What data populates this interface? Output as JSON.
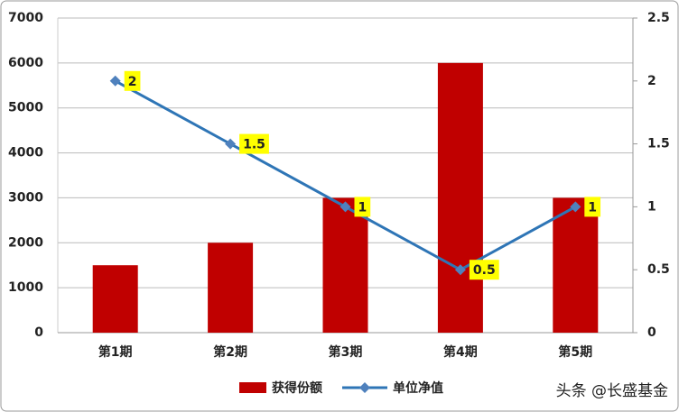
{
  "chart_data": {
    "type": "combo",
    "categories": [
      "第1期",
      "第2期",
      "第3期",
      "第4期",
      "第5期"
    ],
    "series": [
      {
        "name": "获得份额",
        "type": "bar",
        "color": "#c00000",
        "values": [
          1500,
          2000,
          3000,
          6000,
          3000
        ]
      },
      {
        "name": "单位净值",
        "type": "line",
        "axis": "y2",
        "color": "#2e75b6",
        "marker_color": "#4f81bd",
        "label_background": "#ffff00",
        "values": [
          2,
          1.5,
          1,
          0.5,
          1
        ]
      }
    ],
    "ylim": [
      0,
      7000
    ],
    "yticks": [
      0,
      1000,
      2000,
      3000,
      4000,
      5000,
      6000,
      7000
    ],
    "y2lim": [
      0,
      2.5
    ],
    "y2ticks": [
      0,
      0.5,
      1,
      1.5,
      2,
      2.5
    ],
    "grid": true,
    "legend": "bottom",
    "watermark": "头条 @长盛基金"
  }
}
